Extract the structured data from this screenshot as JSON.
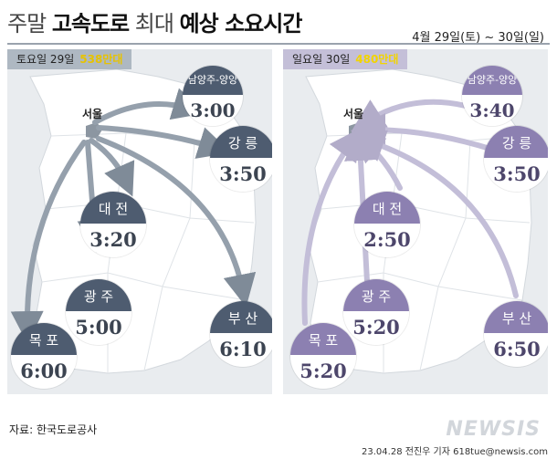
{
  "title": {
    "part1": "주말",
    "part2": "고속도로",
    "part3": "최대",
    "part4": "예상 소요시간"
  },
  "date_range": "4월 29일(토) ~ 30일(일)",
  "colors": {
    "left_accent": "#4e5c70",
    "right_accent": "#8c80b1",
    "left_traffic": "#e7c300",
    "right_traffic": "#f2d400"
  },
  "left": {
    "day": "토요일 29일",
    "traffic": "538만대",
    "origin": "서울",
    "routes": [
      {
        "dest": "남양주-양양",
        "time": "3:00"
      },
      {
        "dest": "강 릉",
        "time": "3:50"
      },
      {
        "dest": "대 전",
        "time": "3:20"
      },
      {
        "dest": "광 주",
        "time": "5:00"
      },
      {
        "dest": "부 산",
        "time": "6:10"
      },
      {
        "dest": "목 포",
        "time": "6:00"
      }
    ]
  },
  "right": {
    "day": "일요일 30일",
    "traffic": "480만대",
    "origin": "서울",
    "routes": [
      {
        "dest": "남양주-양양",
        "time": "3:40"
      },
      {
        "dest": "강 릉",
        "time": "3:50"
      },
      {
        "dest": "대 전",
        "time": "2:50"
      },
      {
        "dest": "광 주",
        "time": "5:20"
      },
      {
        "dest": "부 산",
        "time": "6:50"
      },
      {
        "dest": "목 포",
        "time": "5:20"
      }
    ]
  },
  "source": "자료: 한국도로공사",
  "credit": "23.04.28 전진우 기자 618tue@newsis.com",
  "logo": "NEWSIS"
}
